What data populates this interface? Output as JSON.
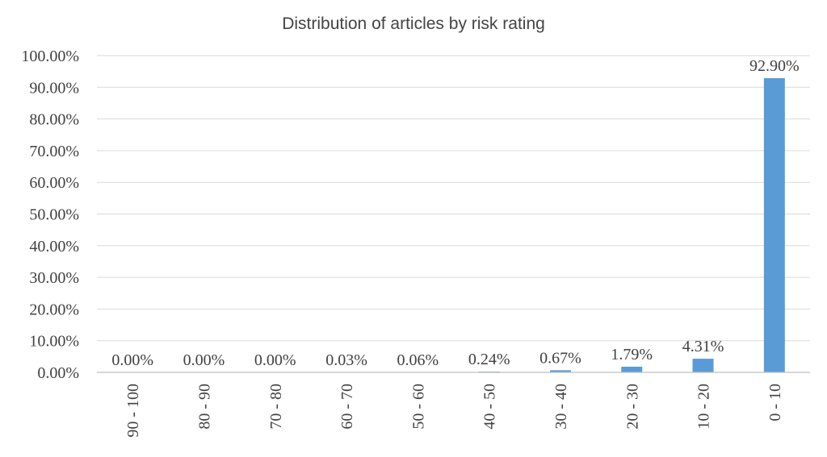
{
  "chart_data": {
    "type": "bar",
    "title": "Distribution of articles by risk rating",
    "xlabel": "",
    "ylabel": "",
    "categories": [
      "90 - 100",
      "80 - 90",
      "70 - 80",
      "60 - 70",
      "50 - 60",
      "40 - 50",
      "30 - 40",
      "20 - 30",
      "10 - 20",
      "0 - 10"
    ],
    "values": [
      0.0,
      0.0,
      0.0,
      0.03,
      0.06,
      0.24,
      0.67,
      1.79,
      4.31,
      92.9
    ],
    "data_labels": [
      "0.00%",
      "0.00%",
      "0.00%",
      "0.03%",
      "0.06%",
      "0.24%",
      "0.67%",
      "1.79%",
      "4.31%",
      "92.90%"
    ],
    "ylim": [
      0,
      100
    ],
    "yticks": [
      0,
      10,
      20,
      30,
      40,
      50,
      60,
      70,
      80,
      90,
      100
    ],
    "ytick_labels": [
      "0.00%",
      "10.00%",
      "20.00%",
      "30.00%",
      "40.00%",
      "50.00%",
      "60.00%",
      "70.00%",
      "80.00%",
      "90.00%",
      "100.00%"
    ],
    "grid": true,
    "legend": "none",
    "bar_color": "#5b9bd5"
  }
}
